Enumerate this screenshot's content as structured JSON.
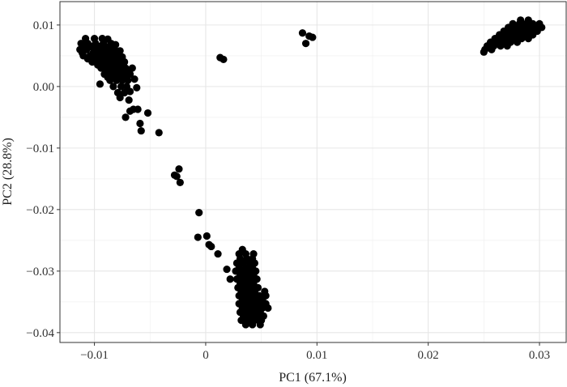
{
  "chart_data": {
    "type": "scatter",
    "title": "",
    "xlabel": "PC1 (67.1%)",
    "ylabel": "PC2 (28.8%)",
    "xlim": [
      -0.0131,
      0.0324
    ],
    "ylim": [
      -0.0416,
      0.0138
    ],
    "grid": true,
    "legend": "none",
    "marker_color": "#000000",
    "x_ticks": [
      {
        "value": -0.01,
        "label": "−0.01"
      },
      {
        "value": 0,
        "label": "0"
      },
      {
        "value": 0.01,
        "label": "0.01"
      },
      {
        "value": 0.02,
        "label": "0.02"
      },
      {
        "value": 0.03,
        "label": "0.03"
      }
    ],
    "y_ticks": [
      {
        "value": 0.01,
        "label": "0.01"
      },
      {
        "value": 0.0,
        "label": "0.00"
      },
      {
        "value": -0.01,
        "label": "−0.01"
      },
      {
        "value": -0.02,
        "label": "−0.02"
      },
      {
        "value": -0.03,
        "label": "−0.03"
      },
      {
        "value": -0.04,
        "label": "−0.04"
      }
    ],
    "series": [
      {
        "name": "cluster-upper-left",
        "points": [
          [
            -0.0108,
            0.0078
          ],
          [
            -0.01,
            0.0078
          ],
          [
            -0.0093,
            0.0078
          ],
          [
            -0.0088,
            0.0077
          ],
          [
            -0.0112,
            0.007
          ],
          [
            -0.0106,
            0.007
          ],
          [
            -0.0099,
            0.007
          ],
          [
            -0.0092,
            0.007
          ],
          [
            -0.0085,
            0.007
          ],
          [
            -0.0081,
            0.0068
          ],
          [
            -0.0109,
            0.0065
          ],
          [
            -0.0103,
            0.0065
          ],
          [
            -0.0096,
            0.0065
          ],
          [
            -0.009,
            0.0065
          ],
          [
            -0.0084,
            0.0065
          ],
          [
            -0.0113,
            0.006
          ],
          [
            -0.0107,
            0.006
          ],
          [
            -0.01,
            0.006
          ],
          [
            -0.0094,
            0.006
          ],
          [
            -0.0088,
            0.006
          ],
          [
            -0.0082,
            0.006
          ],
          [
            -0.0077,
            0.0058
          ],
          [
            -0.0111,
            0.0055
          ],
          [
            -0.0101,
            0.0055
          ],
          [
            -0.0095,
            0.0055
          ],
          [
            -0.0089,
            0.0055
          ],
          [
            -0.0083,
            0.0055
          ],
          [
            -0.0078,
            0.0055
          ],
          [
            -0.011,
            0.005
          ],
          [
            -0.0104,
            0.005
          ],
          [
            -0.0098,
            0.005
          ],
          [
            -0.0092,
            0.005
          ],
          [
            -0.0086,
            0.005
          ],
          [
            -0.008,
            0.005
          ],
          [
            -0.0075,
            0.0048
          ],
          [
            -0.0106,
            0.0045
          ],
          [
            -0.0099,
            0.0045
          ],
          [
            -0.0093,
            0.0045
          ],
          [
            -0.0087,
            0.0045
          ],
          [
            -0.0081,
            0.0045
          ],
          [
            -0.0076,
            0.0045
          ],
          [
            -0.0102,
            0.004
          ],
          [
            -0.0096,
            0.004
          ],
          [
            -0.009,
            0.004
          ],
          [
            -0.0084,
            0.004
          ],
          [
            -0.0078,
            0.004
          ],
          [
            -0.0073,
            0.004
          ],
          [
            -0.0097,
            0.0035
          ],
          [
            -0.0091,
            0.0035
          ],
          [
            -0.0085,
            0.0035
          ],
          [
            -0.0079,
            0.0035
          ],
          [
            -0.0074,
            0.0035
          ],
          [
            -0.0094,
            0.003
          ],
          [
            -0.0088,
            0.003
          ],
          [
            -0.0082,
            0.003
          ],
          [
            -0.0077,
            0.003
          ],
          [
            -0.0072,
            0.003
          ],
          [
            -0.0066,
            0.003
          ],
          [
            -0.0089,
            0.0025
          ],
          [
            -0.0083,
            0.0025
          ],
          [
            -0.0077,
            0.0025
          ],
          [
            -0.0071,
            0.0025
          ],
          [
            -0.0091,
            0.002
          ],
          [
            -0.0085,
            0.002
          ],
          [
            -0.0079,
            0.002
          ],
          [
            -0.0074,
            0.002
          ],
          [
            -0.0068,
            0.002
          ],
          [
            -0.0088,
            0.0015
          ],
          [
            -0.0082,
            0.0015
          ],
          [
            -0.0076,
            0.0015
          ],
          [
            -0.0071,
            0.0015
          ],
          [
            -0.0064,
            0.0012
          ],
          [
            -0.0086,
            0.001
          ],
          [
            -0.008,
            0.001
          ],
          [
            -0.0075,
            0.001
          ],
          [
            -0.007,
            0.001
          ],
          [
            -0.0095,
            0.0004
          ],
          [
            -0.0083,
            0.0
          ],
          [
            -0.0076,
            0.0
          ],
          [
            -0.0071,
            0.0
          ],
          [
            -0.0062,
            -0.0002
          ],
          [
            -0.0079,
            -0.001
          ],
          [
            -0.0073,
            -0.001
          ],
          [
            -0.0068,
            -0.0008
          ],
          [
            -0.0077,
            -0.0018
          ],
          [
            -0.0069,
            -0.0022
          ]
        ]
      },
      {
        "name": "outliers",
        "points": [
          [
            0.0013,
            0.0047
          ],
          [
            0.0016,
            0.0044
          ],
          [
            0.0087,
            0.0087
          ],
          [
            0.009,
            0.007
          ],
          [
            0.0093,
            0.0082
          ],
          [
            0.0096,
            0.008
          ],
          [
            -0.0068,
            -0.004
          ],
          [
            -0.0072,
            -0.005
          ],
          [
            -0.0065,
            -0.0037
          ],
          [
            -0.0061,
            -0.0037
          ],
          [
            -0.0052,
            -0.0043
          ],
          [
            -0.0059,
            -0.006
          ],
          [
            -0.0058,
            -0.0072
          ],
          [
            -0.0042,
            -0.0075
          ],
          [
            -0.0028,
            -0.0144
          ],
          [
            -0.0024,
            -0.0134
          ],
          [
            -0.0023,
            -0.0156
          ],
          [
            -0.0026,
            -0.0146
          ],
          [
            -0.0006,
            -0.0205
          ],
          [
            -0.0007,
            -0.0245
          ],
          [
            0.0001,
            -0.0243
          ],
          [
            0.0003,
            -0.0257
          ],
          [
            0.0005,
            -0.026
          ],
          [
            0.0011,
            -0.0272
          ],
          [
            0.0019,
            -0.0297
          ]
        ]
      },
      {
        "name": "cluster-bottom",
        "points": [
          [
            0.0033,
            -0.0265
          ],
          [
            0.003,
            -0.0272
          ],
          [
            0.0036,
            -0.0272
          ],
          [
            0.0043,
            -0.0272
          ],
          [
            0.0031,
            -0.028
          ],
          [
            0.0037,
            -0.028
          ],
          [
            0.0042,
            -0.028
          ],
          [
            0.0028,
            -0.0287
          ],
          [
            0.0034,
            -0.0287
          ],
          [
            0.004,
            -0.0287
          ],
          [
            0.0044,
            -0.0287
          ],
          [
            0.003,
            -0.0295
          ],
          [
            0.0036,
            -0.0295
          ],
          [
            0.0042,
            -0.0295
          ],
          [
            0.0027,
            -0.03
          ],
          [
            0.0033,
            -0.03
          ],
          [
            0.0039,
            -0.03
          ],
          [
            0.0045,
            -0.03
          ],
          [
            0.0031,
            -0.0307
          ],
          [
            0.0037,
            -0.0307
          ],
          [
            0.0043,
            -0.0307
          ],
          [
            0.0022,
            -0.0313
          ],
          [
            0.0028,
            -0.0313
          ],
          [
            0.0034,
            -0.0313
          ],
          [
            0.004,
            -0.0313
          ],
          [
            0.0046,
            -0.0313
          ],
          [
            0.0031,
            -0.032
          ],
          [
            0.0037,
            -0.032
          ],
          [
            0.0043,
            -0.032
          ],
          [
            0.0029,
            -0.0327
          ],
          [
            0.0035,
            -0.0327
          ],
          [
            0.0041,
            -0.0327
          ],
          [
            0.0047,
            -0.0327
          ],
          [
            0.0032,
            -0.0333
          ],
          [
            0.0038,
            -0.0333
          ],
          [
            0.0044,
            -0.0333
          ],
          [
            0.0053,
            -0.0333
          ],
          [
            0.003,
            -0.034
          ],
          [
            0.0036,
            -0.034
          ],
          [
            0.0042,
            -0.034
          ],
          [
            0.0048,
            -0.034
          ],
          [
            0.0054,
            -0.034
          ],
          [
            0.0033,
            -0.0347
          ],
          [
            0.0039,
            -0.0347
          ],
          [
            0.0045,
            -0.0347
          ],
          [
            0.0051,
            -0.0347
          ],
          [
            0.003,
            -0.0353
          ],
          [
            0.0036,
            -0.0353
          ],
          [
            0.0042,
            -0.0353
          ],
          [
            0.0048,
            -0.0353
          ],
          [
            0.0054,
            -0.0353
          ],
          [
            0.0033,
            -0.036
          ],
          [
            0.0039,
            -0.036
          ],
          [
            0.0045,
            -0.036
          ],
          [
            0.0051,
            -0.036
          ],
          [
            0.0056,
            -0.036
          ],
          [
            0.0031,
            -0.0367
          ],
          [
            0.0037,
            -0.0367
          ],
          [
            0.0043,
            -0.0367
          ],
          [
            0.0049,
            -0.0367
          ],
          [
            0.0034,
            -0.0373
          ],
          [
            0.004,
            -0.0373
          ],
          [
            0.0046,
            -0.0373
          ],
          [
            0.0052,
            -0.0373
          ],
          [
            0.0032,
            -0.038
          ],
          [
            0.0038,
            -0.038
          ],
          [
            0.0044,
            -0.038
          ],
          [
            0.005,
            -0.038
          ],
          [
            0.0036,
            -0.0387
          ],
          [
            0.0042,
            -0.0387
          ],
          [
            0.0049,
            -0.0387
          ]
        ]
      },
      {
        "name": "cluster-upper-right",
        "points": [
          [
            0.0283,
            0.0108
          ],
          [
            0.029,
            0.0108
          ],
          [
            0.0276,
            0.0102
          ],
          [
            0.0282,
            0.0102
          ],
          [
            0.0288,
            0.0102
          ],
          [
            0.0294,
            0.0102
          ],
          [
            0.03,
            0.0102
          ],
          [
            0.0272,
            0.0096
          ],
          [
            0.0278,
            0.0096
          ],
          [
            0.0284,
            0.0096
          ],
          [
            0.029,
            0.0096
          ],
          [
            0.0296,
            0.0096
          ],
          [
            0.0302,
            0.0096
          ],
          [
            0.0268,
            0.009
          ],
          [
            0.0274,
            0.009
          ],
          [
            0.028,
            0.009
          ],
          [
            0.0286,
            0.009
          ],
          [
            0.0292,
            0.009
          ],
          [
            0.0298,
            0.009
          ],
          [
            0.0264,
            0.0084
          ],
          [
            0.027,
            0.0084
          ],
          [
            0.0276,
            0.0084
          ],
          [
            0.0282,
            0.0084
          ],
          [
            0.0288,
            0.0084
          ],
          [
            0.0294,
            0.0084
          ],
          [
            0.026,
            0.0078
          ],
          [
            0.0266,
            0.0078
          ],
          [
            0.0272,
            0.0078
          ],
          [
            0.0278,
            0.0078
          ],
          [
            0.0284,
            0.0078
          ],
          [
            0.029,
            0.0078
          ],
          [
            0.0256,
            0.0072
          ],
          [
            0.0262,
            0.0072
          ],
          [
            0.0268,
            0.0072
          ],
          [
            0.0274,
            0.0072
          ],
          [
            0.028,
            0.0072
          ],
          [
            0.0253,
            0.0066
          ],
          [
            0.0259,
            0.0066
          ],
          [
            0.0265,
            0.0066
          ],
          [
            0.0271,
            0.0066
          ],
          [
            0.0251,
            0.006
          ],
          [
            0.0257,
            0.006
          ],
          [
            0.025,
            0.0056
          ]
        ]
      }
    ]
  }
}
